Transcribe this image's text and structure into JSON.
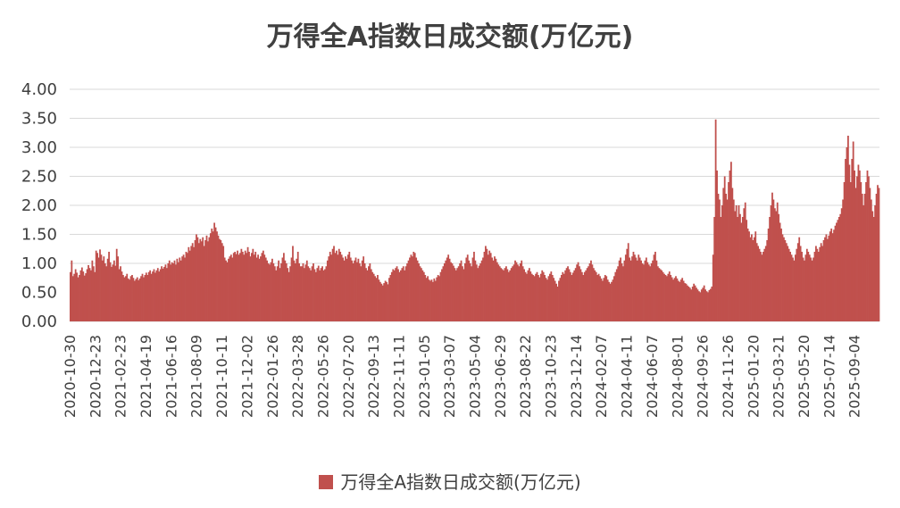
{
  "chart_data": {
    "type": "bar",
    "title": "万得全A指数日成交额(万亿元)",
    "xlabel": "",
    "ylabel": "",
    "ylim": [
      0,
      4
    ],
    "yticks": [
      "0.00",
      "0.50",
      "1.00",
      "1.50",
      "2.00",
      "2.50",
      "3.00",
      "3.50",
      "4.00"
    ],
    "grid": true,
    "legend_position": "bottom",
    "colors": {
      "series": "#C0504D",
      "grid": "#D9D9D9",
      "text": "#404040"
    },
    "x_tick_labels": [
      "2020-10-30",
      "2020-12-23",
      "2021-02-23",
      "2021-04-19",
      "2021-06-16",
      "2021-08-09",
      "2021-10-11",
      "2021-12-02",
      "2022-01-26",
      "2022-03-28",
      "2022-05-26",
      "2022-07-20",
      "2022-09-13",
      "2022-11-11",
      "2023-01-05",
      "2023-03-07",
      "2023-05-04",
      "2023-06-29",
      "2023-08-22",
      "2023-10-23",
      "2023-12-14",
      "2024-02-07",
      "2024-04-11",
      "2024-06-07",
      "2024-08-01",
      "2024-09-26",
      "2024-11-26",
      "2025-01-20",
      "2025-03-21",
      "2025-05-20",
      "2025-07-14",
      "2025-09-04"
    ],
    "series": [
      {
        "name": "万得全A指数日成交额(万亿元)",
        "values_per_tick_interval": "Each consecutive group of values spans one x-tick interval (approx. 2 months of trading days); values are approximate trading-day amounts in 万亿元.",
        "values": [
          0.85,
          1.05,
          0.78,
          0.82,
          0.9,
          0.84,
          0.76,
          0.8,
          0.88,
          0.93,
          0.86,
          0.79,
          0.83,
          0.9,
          0.97,
          0.92,
          0.88,
          1.05,
          0.95,
          0.85,
          1.22,
          1.18,
          1.1,
          1.24,
          1.15,
          1.05,
          1.12,
          1.0,
          0.95,
          1.08,
          1.2,
          1.02,
          0.94,
          0.98,
          1.05,
          0.96,
          1.25,
          1.12,
          0.9,
          0.95,
          0.86,
          0.8,
          0.76,
          0.78,
          0.82,
          0.74,
          0.72,
          0.78,
          0.8,
          0.75,
          0.7,
          0.73,
          0.76,
          0.71,
          0.74,
          0.78,
          0.82,
          0.76,
          0.8,
          0.84,
          0.8,
          0.85,
          0.88,
          0.82,
          0.86,
          0.9,
          0.84,
          0.88,
          0.92,
          0.86,
          0.9,
          0.95,
          0.91,
          0.94,
          0.98,
          0.92,
          1.0,
          1.05,
          0.98,
          1.02,
          1.0,
          1.05,
          0.98,
          1.08,
          1.02,
          1.1,
          1.05,
          1.12,
          1.15,
          1.1,
          1.2,
          1.18,
          1.28,
          1.22,
          1.3,
          1.35,
          1.28,
          1.4,
          1.5,
          1.45,
          1.35,
          1.42,
          1.38,
          1.45,
          1.3,
          1.4,
          1.48,
          1.38,
          1.45,
          1.52,
          1.6,
          1.55,
          1.7,
          1.62,
          1.55,
          1.48,
          1.42,
          1.4,
          1.35,
          1.3,
          1.1,
          1.05,
          1.02,
          1.08,
          1.12,
          1.15,
          1.1,
          1.18,
          1.2,
          1.16,
          1.22,
          1.15,
          1.18,
          1.25,
          1.2,
          1.15,
          1.22,
          1.18,
          1.28,
          1.2,
          1.12,
          1.18,
          1.25,
          1.15,
          1.2,
          1.1,
          1.15,
          1.08,
          1.12,
          1.18,
          1.22,
          1.15,
          1.1,
          1.05,
          1.0,
          0.98,
          1.02,
          1.08,
          1.0,
          0.95,
          0.88,
          0.95,
          1.05,
          0.92,
          1.0,
          1.1,
          1.18,
          1.05,
          1.0,
          0.92,
          0.85,
          0.95,
          1.1,
          1.3,
          1.05,
          1.0,
          1.08,
          1.2,
          1.0,
          0.95,
          0.95,
          1.0,
          0.92,
          0.98,
          1.05,
          0.95,
          0.92,
          0.88,
          0.95,
          1.0,
          0.9,
          0.85,
          0.92,
          0.96,
          0.88,
          0.92,
          0.95,
          0.88,
          0.9,
          0.95,
          1.05,
          1.12,
          1.2,
          1.15,
          1.25,
          1.3,
          1.18,
          1.22,
          1.15,
          1.25,
          1.2,
          1.15,
          1.1,
          1.05,
          1.12,
          1.08,
          1.15,
          1.2,
          1.1,
          1.05,
          1.0,
          1.05,
          1.1,
          1.02,
          1.08,
          1.0,
          0.95,
          1.05,
          1.12,
          1.0,
          0.92,
          0.88,
          0.95,
          1.0,
          0.9,
          0.85,
          0.82,
          0.78,
          0.75,
          0.8,
          0.72,
          0.68,
          0.65,
          0.62,
          0.66,
          0.7,
          0.68,
          0.64,
          0.75,
          0.8,
          0.85,
          0.9,
          0.88,
          0.92,
          0.95,
          0.9,
          0.85,
          0.88,
          0.92,
          0.95,
          0.88,
          0.95,
          1.0,
          1.05,
          1.1,
          1.15,
          1.12,
          1.2,
          1.18,
          1.1,
          1.05,
          1.0,
          0.95,
          0.92,
          0.88,
          0.85,
          0.8,
          0.75,
          0.78,
          0.72,
          0.7,
          0.72,
          0.68,
          0.74,
          0.7,
          0.76,
          0.8,
          0.78,
          0.85,
          0.9,
          0.95,
          1.0,
          1.05,
          1.1,
          1.15,
          1.08,
          1.02,
          1.0,
          0.96,
          0.92,
          0.88,
          0.92,
          0.95,
          1.0,
          1.05,
          0.95,
          0.9,
          1.0,
          1.1,
          1.15,
          1.05,
          1.0,
          0.95,
          1.1,
          1.2,
          1.05,
          0.98,
          0.92,
          0.96,
          1.0,
          1.05,
          1.1,
          1.2,
          1.3,
          1.25,
          1.15,
          1.22,
          1.18,
          1.1,
          1.05,
          1.12,
          1.08,
          1.02,
          0.98,
          0.95,
          0.92,
          0.9,
          0.88,
          0.92,
          0.95,
          0.9,
          0.85,
          0.88,
          0.92,
          0.95,
          0.98,
          1.05,
          1.02,
          0.98,
          0.95,
          1.0,
          1.05,
          0.95,
          0.9,
          0.85,
          0.82,
          0.88,
          0.92,
          0.86,
          0.82,
          0.8,
          0.78,
          0.82,
          0.85,
          0.8,
          0.76,
          0.82,
          0.88,
          0.85,
          0.8,
          0.75,
          0.72,
          0.78,
          0.82,
          0.86,
          0.8,
          0.75,
          0.7,
          0.65,
          0.6,
          0.7,
          0.75,
          0.8,
          0.85,
          0.82,
          0.88,
          0.92,
          0.95,
          0.9,
          0.85,
          0.8,
          0.84,
          0.88,
          0.92,
          0.98,
          1.02,
          0.95,
          0.9,
          0.85,
          0.8,
          0.85,
          0.88,
          0.92,
          0.95,
          1.0,
          1.05,
          0.98,
          0.92,
          0.88,
          0.85,
          0.8,
          0.82,
          0.78,
          0.74,
          0.7,
          0.75,
          0.8,
          0.78,
          0.72,
          0.68,
          0.65,
          0.68,
          0.72,
          0.78,
          0.85,
          0.9,
          0.95,
          1.05,
          1.1,
          1.0,
          0.95,
          1.05,
          1.15,
          1.25,
          1.35,
          1.1,
          1.05,
          1.12,
          1.2,
          1.15,
          1.1,
          1.05,
          1.15,
          1.1,
          1.05,
          1.0,
          0.98,
          1.05,
          1.1,
          1.02,
          0.98,
          0.95,
          1.0,
          1.05,
          1.15,
          1.2,
          1.05,
          0.95,
          0.92,
          0.9,
          0.88,
          0.85,
          0.82,
          0.8,
          0.78,
          0.82,
          0.86,
          0.8,
          0.76,
          0.72,
          0.75,
          0.78,
          0.74,
          0.7,
          0.68,
          0.72,
          0.75,
          0.7,
          0.66,
          0.65,
          0.62,
          0.6,
          0.58,
          0.55,
          0.6,
          0.65,
          0.62,
          0.58,
          0.55,
          0.52,
          0.5,
          0.55,
          0.58,
          0.62,
          0.55,
          0.52,
          0.5,
          0.54,
          0.56,
          0.6,
          1.15,
          1.8,
          3.48,
          2.6,
          2.2,
          2.1,
          1.8,
          2.0,
          2.3,
          2.5,
          2.2,
          2.1,
          2.4,
          2.6,
          2.75,
          2.3,
          2.1,
          1.9,
          2.0,
          1.8,
          2.0,
          1.85,
          1.7,
          1.8,
          1.95,
          2.05,
          1.75,
          1.6,
          1.55,
          1.45,
          1.5,
          1.4,
          1.45,
          1.55,
          1.35,
          1.3,
          1.25,
          1.2,
          1.15,
          1.2,
          1.25,
          1.3,
          1.4,
          1.6,
          1.8,
          2.0,
          2.22,
          2.1,
          1.95,
          1.9,
          2.05,
          1.85,
          1.7,
          1.6,
          1.5,
          1.45,
          1.4,
          1.35,
          1.3,
          1.25,
          1.2,
          1.15,
          1.1,
          1.05,
          1.15,
          1.25,
          1.35,
          1.45,
          1.3,
          1.2,
          1.1,
          1.05,
          1.15,
          1.25,
          1.2,
          1.15,
          1.1,
          1.05,
          1.1,
          1.2,
          1.3,
          1.25,
          1.2,
          1.28,
          1.35,
          1.3,
          1.4,
          1.45,
          1.5,
          1.42,
          1.48,
          1.55,
          1.6,
          1.52,
          1.58,
          1.65,
          1.7,
          1.75,
          1.8,
          1.85,
          1.95,
          2.1,
          2.4,
          2.8,
          3.0,
          3.2,
          2.7,
          2.4,
          2.8,
          3.1,
          2.6,
          2.3,
          2.5,
          2.7,
          2.6,
          2.4,
          2.2,
          2.0,
          2.2,
          2.4,
          2.6,
          2.5,
          2.3,
          2.1,
          1.9,
          1.8,
          2.0,
          2.2,
          2.35,
          2.3
        ]
      }
    ]
  },
  "legend": {
    "label": "万得全A指数日成交额(万亿元)"
  }
}
